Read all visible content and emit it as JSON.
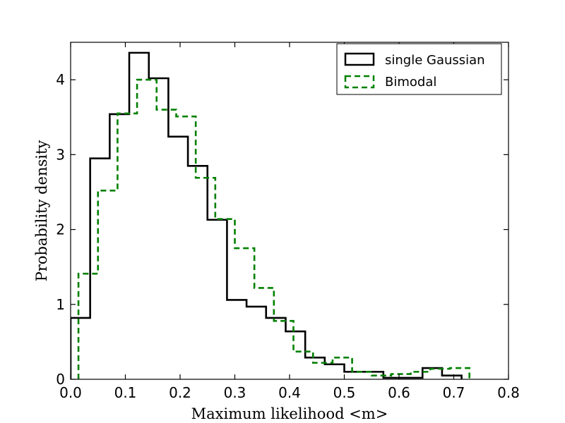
{
  "chart_data": {
    "type": "histogram",
    "title": "",
    "xlabel": "Maximum likelihood <m>",
    "ylabel": "Probability density",
    "xlim": [
      0.0,
      0.8
    ],
    "ylim": [
      0.0,
      4.5
    ],
    "xticks": [
      0.0,
      0.1,
      0.2,
      0.3,
      0.4,
      0.5,
      0.6,
      0.7,
      0.8
    ],
    "xtick_labels": [
      "0.0",
      "0.1",
      "0.2",
      "0.3",
      "0.4",
      "0.5",
      "0.6",
      "0.7",
      "0.8"
    ],
    "yticks": [
      0,
      1,
      2,
      3,
      4
    ],
    "ytick_labels": [
      "0",
      "1",
      "2",
      "3",
      "4"
    ],
    "grid": false,
    "legend_position": "top-right",
    "series": [
      {
        "name": "single Gaussian",
        "style": "solid",
        "color": "#000000",
        "bin_edges": [
          0.0,
          0.0357,
          0.0714,
          0.1071,
          0.1429,
          0.1786,
          0.2143,
          0.25,
          0.2857,
          0.3214,
          0.3571,
          0.3929,
          0.4286,
          0.4643,
          0.5,
          0.5357,
          0.5714,
          0.6071,
          0.6429,
          0.6786,
          0.7143
        ],
        "values": [
          0.82,
          2.95,
          3.54,
          4.36,
          4.02,
          3.24,
          2.85,
          2.13,
          1.06,
          0.97,
          0.82,
          0.64,
          0.29,
          0.2,
          0.1,
          0.1,
          0.02,
          0.02,
          0.15,
          0.05
        ]
      },
      {
        "name": "Bimodal",
        "style": "dashed",
        "color": "#008000",
        "bin_edges": [
          0.0143,
          0.05,
          0.0857,
          0.1214,
          0.1571,
          0.1929,
          0.2286,
          0.2643,
          0.3,
          0.3357,
          0.3714,
          0.4071,
          0.4429,
          0.4786,
          0.5143,
          0.55,
          0.5857,
          0.6214,
          0.6571,
          0.6929,
          0.7286
        ],
        "values": [
          1.41,
          2.52,
          3.55,
          4.0,
          3.6,
          3.51,
          2.69,
          2.14,
          1.75,
          1.22,
          0.78,
          0.37,
          0.22,
          0.29,
          0.1,
          0.05,
          0.07,
          0.1,
          0.14,
          0.15
        ]
      }
    ]
  }
}
